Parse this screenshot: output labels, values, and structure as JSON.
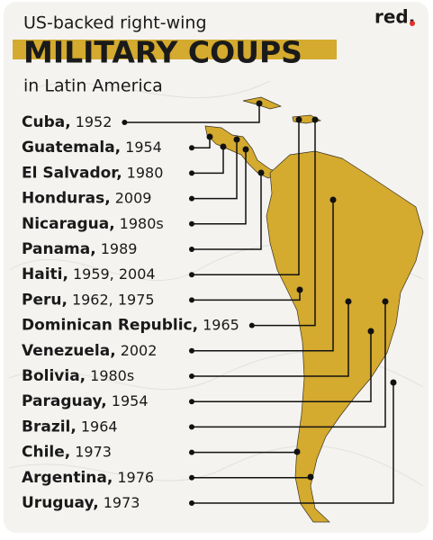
{
  "header": {
    "kicker": "US-backed right-wing",
    "title": "MILITARY COUPS",
    "subtitle": "in Latin America",
    "brand": "red."
  },
  "items": [
    {
      "country": "Cuba,",
      "years": "1952"
    },
    {
      "country": "Guatemala,",
      "years": "1954"
    },
    {
      "country": "El Salvador,",
      "years": "1980"
    },
    {
      "country": "Honduras,",
      "years": "2009"
    },
    {
      "country": "Nicaragua,",
      "years": "1980s"
    },
    {
      "country": "Panama,",
      "years": "1989"
    },
    {
      "country": "Haiti,",
      "years": "1959, 2004"
    },
    {
      "country": "Peru,",
      "years": "1962, 1975"
    },
    {
      "country": "Dominican Republic,",
      "years": "1965"
    },
    {
      "country": "Venezuela,",
      "years": "2002"
    },
    {
      "country": "Bolivia,",
      "years": "1980s"
    },
    {
      "country": "Paraguay,",
      "years": "1954"
    },
    {
      "country": "Brazil,",
      "years": "1964"
    },
    {
      "country": "Chile,",
      "years": "1973"
    },
    {
      "country": "Argentina,",
      "years": "1976"
    },
    {
      "country": "Uruguay,",
      "years": "1973"
    }
  ]
}
